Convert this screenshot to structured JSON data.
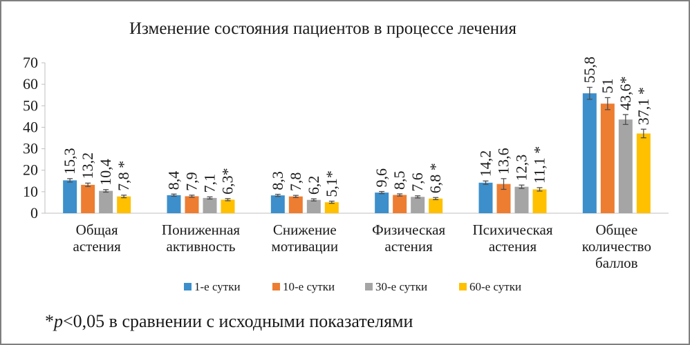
{
  "chart_data": {
    "type": "bar",
    "title": "Изменение состояния пациентов в процессе лечения",
    "categories": [
      [
        "Общая",
        "астения"
      ],
      [
        "Пониженная",
        "активность"
      ],
      [
        "Снижение",
        "мотивации"
      ],
      [
        "Физическая",
        "астения"
      ],
      [
        "Психическая",
        "астения"
      ],
      [
        "Общее",
        "количество",
        "баллов"
      ]
    ],
    "series": [
      {
        "name": "1-е сутки",
        "color": "#3c8fcb",
        "values": [
          15.3,
          8.4,
          8.3,
          9.6,
          14.2,
          55.8
        ],
        "labels": [
          "15,3",
          "8,4",
          "8,3",
          "9,6",
          "14,2",
          "55,8"
        ],
        "errors": [
          0.8,
          0.5,
          0.5,
          0.5,
          0.8,
          2.8
        ]
      },
      {
        "name": "10-е сутки",
        "color": "#ed7d31",
        "values": [
          13.2,
          7.9,
          7.8,
          8.5,
          13.6,
          51
        ],
        "labels": [
          "13,2",
          "7,9",
          "7,8",
          "8,5",
          "13,6",
          "51"
        ],
        "errors": [
          0.8,
          0.5,
          0.5,
          0.5,
          2.5,
          2.8
        ]
      },
      {
        "name": "30-е сутки",
        "color": "#a5a5a5",
        "values": [
          10.4,
          7.1,
          6.2,
          7.6,
          12.3,
          43.6
        ],
        "labels": [
          "10,4",
          "7,1",
          "6,2",
          "7,6",
          "12,3",
          "43,6*"
        ],
        "errors": [
          0.6,
          0.5,
          0.5,
          0.5,
          0.8,
          2.3
        ]
      },
      {
        "name": "60-е сутки",
        "color": "#ffc000",
        "values": [
          7.8,
          6.3,
          5.1,
          6.8,
          11.1,
          37.1
        ],
        "labels": [
          "7,8 *",
          "6,3*",
          "5,1*",
          "6,8 *",
          "11,1 *",
          "37,1 *"
        ],
        "errors": [
          0.6,
          0.5,
          0.5,
          0.5,
          0.8,
          2.0
        ]
      }
    ],
    "ylim": [
      0,
      70
    ],
    "yticks": [
      0,
      10,
      20,
      30,
      40,
      50,
      60,
      70
    ],
    "grid": false,
    "legend_position": "bottom",
    "footnote": {
      "prefix": "*",
      "italic": "p",
      "rest": "<0,05 в сравнении с исходными показателями"
    }
  }
}
